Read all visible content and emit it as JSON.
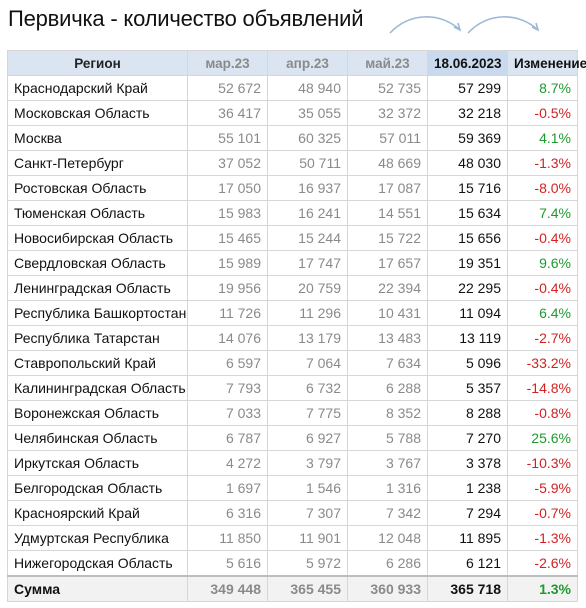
{
  "title": "Первичка - количество объявлений",
  "headers": {
    "region": "Регион",
    "m1": "мар.23",
    "m2": "апр.23",
    "m3": "май.23",
    "date": "18.06.2023",
    "change": "Изменение"
  },
  "colors": {
    "positive": "#1f9a2f",
    "negative": "#d42222",
    "header_bg": "#dbe5f1",
    "arrow": "#9db8d6"
  },
  "rows": [
    {
      "region": "Краснодарский Край",
      "m1": "52 672",
      "m2": "48 940",
      "m3": "52 735",
      "date": "57 299",
      "change": "8.7%",
      "sign": "pos"
    },
    {
      "region": "Московская Область",
      "m1": "36 417",
      "m2": "35 055",
      "m3": "32 372",
      "date": "32 218",
      "change": "-0.5%",
      "sign": "neg"
    },
    {
      "region": "Москва",
      "m1": "55 101",
      "m2": "60 325",
      "m3": "57 011",
      "date": "59 369",
      "change": "4.1%",
      "sign": "pos"
    },
    {
      "region": "Санкт-Петербург",
      "m1": "37 052",
      "m2": "50 711",
      "m3": "48 669",
      "date": "48 030",
      "change": "-1.3%",
      "sign": "neg"
    },
    {
      "region": "Ростовская Область",
      "m1": "17 050",
      "m2": "16 937",
      "m3": "17 087",
      "date": "15 716",
      "change": "-8.0%",
      "sign": "neg"
    },
    {
      "region": "Тюменская Область",
      "m1": "15 983",
      "m2": "16 241",
      "m3": "14 551",
      "date": "15 634",
      "change": "7.4%",
      "sign": "pos"
    },
    {
      "region": "Новосибирская Область",
      "m1": "15 465",
      "m2": "15 244",
      "m3": "15 722",
      "date": "15 656",
      "change": "-0.4%",
      "sign": "neg"
    },
    {
      "region": "Свердловская Область",
      "m1": "15 989",
      "m2": "17 747",
      "m3": "17 657",
      "date": "19 351",
      "change": "9.6%",
      "sign": "pos"
    },
    {
      "region": "Ленинградская Область",
      "m1": "19 956",
      "m2": "20 759",
      "m3": "22 394",
      "date": "22 295",
      "change": "-0.4%",
      "sign": "neg"
    },
    {
      "region": "Республика Башкортостан",
      "m1": "11 726",
      "m2": "11 296",
      "m3": "10 431",
      "date": "11 094",
      "change": "6.4%",
      "sign": "pos"
    },
    {
      "region": "Республика Татарстан",
      "m1": "14 076",
      "m2": "13 179",
      "m3": "13 483",
      "date": "13 119",
      "change": "-2.7%",
      "sign": "neg"
    },
    {
      "region": "Ставропольский Край",
      "m1": "6 597",
      "m2": "7 064",
      "m3": "7 634",
      "date": "5 096",
      "change": "-33.2%",
      "sign": "neg"
    },
    {
      "region": "Калининградская Область",
      "m1": "7 793",
      "m2": "6 732",
      "m3": "6 288",
      "date": "5 357",
      "change": "-14.8%",
      "sign": "neg"
    },
    {
      "region": "Воронежская Область",
      "m1": "7 033",
      "m2": "7 775",
      "m3": "8 352",
      "date": "8 288",
      "change": "-0.8%",
      "sign": "neg"
    },
    {
      "region": "Челябинская Область",
      "m1": "6 787",
      "m2": "6 927",
      "m3": "5 788",
      "date": "7 270",
      "change": "25.6%",
      "sign": "pos"
    },
    {
      "region": "Иркутская Область",
      "m1": "4 272",
      "m2": "3 797",
      "m3": "3 767",
      "date": "3 378",
      "change": "-10.3%",
      "sign": "neg"
    },
    {
      "region": "Белгородская Область",
      "m1": "1 697",
      "m2": "1 546",
      "m3": "1 316",
      "date": "1 238",
      "change": "-5.9%",
      "sign": "neg"
    },
    {
      "region": "Красноярский Край",
      "m1": "6 316",
      "m2": "7 307",
      "m3": "7 342",
      "date": "7 294",
      "change": "-0.7%",
      "sign": "neg"
    },
    {
      "region": "Удмуртская Республика",
      "m1": "11 850",
      "m2": "11 901",
      "m3": "12 048",
      "date": "11 895",
      "change": "-1.3%",
      "sign": "neg"
    },
    {
      "region": "Нижегородская Область",
      "m1": "5 616",
      "m2": "5 972",
      "m3": "6 286",
      "date": "6 121",
      "change": "-2.6%",
      "sign": "neg"
    }
  ],
  "total": {
    "region": "Сумма",
    "m1": "349 448",
    "m2": "365 455",
    "m3": "360 933",
    "date": "365 718",
    "change": "1.3%",
    "sign": "pos"
  }
}
